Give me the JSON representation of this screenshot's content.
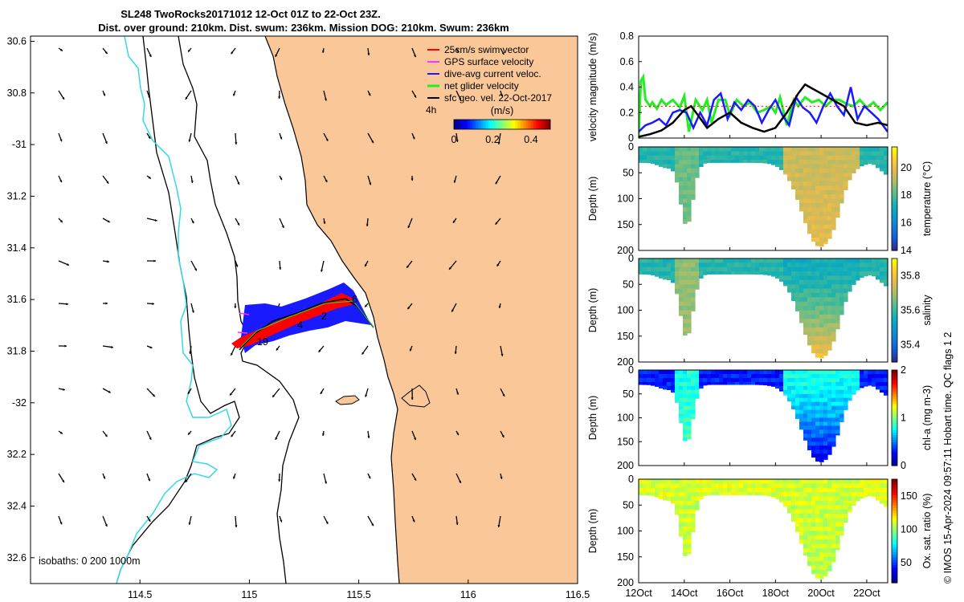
{
  "title_line1": "SL248 TwoRocks20171012 12-Oct 01Z to 22-Oct 23Z.",
  "title_line2": "Dist. over ground: 210km. Dist. swum: 236km. Mission DOG: 210km. Swum: 236km",
  "credit": "© IMOS 15-Apr-2024 09:57:11 Hobart time. QC flags 1  2",
  "colors": {
    "land": "#fac898",
    "isobath": "#000000",
    "shelf_break": "#33d9e8",
    "swim": "#ff0000",
    "gps": "#ff33ff",
    "current": "#1a1aff",
    "net": "#22ee22",
    "geo": "#000000"
  },
  "chart_data": [
    {
      "type": "map",
      "name": "glider track map",
      "xlabel": "",
      "ylabel": "",
      "xlim": [
        114.0,
        116.5
      ],
      "ylim": [
        -32.7,
        -30.58
      ],
      "xticks": [
        114.5,
        115,
        115.5,
        116,
        116.5
      ],
      "xtick_labels": [
        "114.5",
        "115",
        "115.5",
        "116",
        "116.5"
      ],
      "yticks": [
        -30.6,
        -30.8,
        -31,
        -31.2,
        -31.4,
        -31.6,
        -31.8,
        -32,
        -32.2,
        -32.4,
        -32.6
      ],
      "ytick_labels": [
        "30.6",
        "30.8",
        "-31",
        "31.2",
        "31.4",
        "31.6",
        "31.8",
        "-32",
        "32.2",
        "32.4",
        "32.6"
      ],
      "legend": [
        {
          "label": "25cm/s swim vector",
          "color": "#ff0000"
        },
        {
          "label": "GPS surface velocity",
          "color": "#ff33ff"
        },
        {
          "label": "dive-avg current veloc.",
          "color": "#1a1aff"
        },
        {
          "label": "net glider velocity",
          "color": "#22ee22"
        },
        {
          "label": "sfc geo. vel. 22-Oct-2017",
          "color": "#000000"
        }
      ],
      "legend_position": "top-right",
      "scale_label": "4h",
      "colorbar": {
        "title": "(m/s)",
        "range": [
          0,
          0.5
        ],
        "ticks": [
          0,
          0.2,
          0.4
        ],
        "tick_labels": [
          "0",
          "0.2",
          "0.4"
        ]
      },
      "isobaths_label": "isobaths: 0   200  1000m",
      "track_labels": [
        "6",
        "2",
        "4",
        "19"
      ],
      "glider_track": {
        "lon": [
          115.62,
          115.5,
          115.42,
          115.3,
          115.2,
          115.1,
          115.02,
          114.99
        ],
        "lat": [
          -31.72,
          -31.64,
          -31.63,
          -31.67,
          -31.7,
          -31.74,
          -31.77,
          -31.79
        ]
      }
    },
    {
      "type": "line",
      "name": "velocity magnitude",
      "ylabel": "velocity magnitude (m/s)",
      "xlim": [
        0,
        10.92
      ],
      "ylim": [
        0,
        0.8
      ],
      "yticks": [
        0,
        0.2,
        0.4,
        0.6,
        0.8
      ],
      "ytick_labels": [
        "0",
        "0.2",
        "0.4",
        "0.6",
        "0.8"
      ],
      "series": [
        {
          "name": "net glider velocity",
          "color": "#22ee22",
          "t": [
            0.0,
            0.1,
            0.2,
            0.3,
            0.5,
            0.6,
            0.8,
            1.0,
            1.2,
            1.5,
            1.8,
            2.0,
            2.2,
            2.5,
            2.8,
            3.0,
            3.2,
            3.5,
            3.8,
            4.0,
            4.3,
            4.6,
            4.9,
            5.2,
            5.5,
            5.8,
            6.0,
            6.2,
            6.5,
            6.8,
            7.0,
            7.3,
            7.6,
            7.9,
            8.2,
            8.5,
            8.8,
            9.1,
            9.4,
            9.7,
            10.0,
            10.3,
            10.6,
            10.92
          ],
          "v": [
            0.02,
            0.45,
            0.48,
            0.3,
            0.25,
            0.28,
            0.23,
            0.3,
            0.26,
            0.3,
            0.24,
            0.33,
            0.05,
            0.3,
            0.22,
            0.3,
            0.12,
            0.3,
            0.3,
            0.18,
            0.3,
            0.25,
            0.28,
            0.2,
            0.22,
            0.25,
            0.2,
            0.32,
            0.1,
            0.3,
            0.25,
            0.32,
            0.28,
            0.3,
            0.25,
            0.3,
            0.3,
            0.27,
            0.25,
            0.3,
            0.24,
            0.28,
            0.22,
            0.28
          ]
        },
        {
          "name": "dive-avg current veloc.",
          "color": "#1a1aff",
          "t": [
            0.0,
            0.3,
            0.6,
            0.9,
            1.2,
            1.5,
            1.8,
            2.1,
            2.4,
            2.7,
            3.0,
            3.3,
            3.6,
            3.9,
            4.2,
            4.5,
            4.8,
            5.1,
            5.4,
            5.7,
            6.0,
            6.3,
            6.6,
            6.9,
            7.2,
            7.5,
            7.8,
            8.1,
            8.4,
            8.7,
            9.0,
            9.3,
            9.6,
            9.9,
            10.2,
            10.5,
            10.92
          ],
          "v": [
            0.05,
            0.1,
            0.12,
            0.15,
            0.1,
            0.2,
            0.22,
            0.2,
            0.08,
            0.2,
            0.1,
            0.3,
            0.35,
            0.15,
            0.28,
            0.22,
            0.3,
            0.25,
            0.12,
            0.22,
            0.3,
            0.18,
            0.1,
            0.32,
            0.24,
            0.2,
            0.12,
            0.25,
            0.35,
            0.25,
            0.18,
            0.4,
            0.15,
            0.25,
            0.2,
            0.15,
            0.05
          ]
        },
        {
          "name": "sfc geo. vel.",
          "color": "#000000",
          "t": [
            0.0,
            0.5,
            1.0,
            1.5,
            2.0,
            2.3,
            2.6,
            3.0,
            3.5,
            4.0,
            4.5,
            5.0,
            5.5,
            6.0,
            6.5,
            7.0,
            7.3,
            7.5,
            8.0,
            8.5,
            9.0,
            9.5,
            10.0,
            10.5,
            10.92
          ],
          "v": [
            0.01,
            0.03,
            0.06,
            0.12,
            0.22,
            0.25,
            0.18,
            0.08,
            0.15,
            0.2,
            0.12,
            0.08,
            0.05,
            0.08,
            0.2,
            0.35,
            0.42,
            0.4,
            0.35,
            0.3,
            0.25,
            0.12,
            0.1,
            0.12,
            0.1
          ]
        }
      ]
    },
    {
      "type": "section",
      "name": "temperature",
      "ylabel": "Depth (m)",
      "ylim": [
        200,
        0
      ],
      "yticks": [
        0,
        50,
        100,
        150,
        200
      ],
      "ytick_labels": [
        "0",
        "50",
        "100",
        "150",
        "200"
      ],
      "colorbar_label": "temperature (°C)",
      "colorbar_range": [
        14,
        21.5
      ],
      "colorbar_ticks": [
        14,
        16,
        18,
        20
      ],
      "colorbar_tick_labels": [
        "14",
        "16",
        "18",
        "20"
      ],
      "surface_value": 17.5,
      "trough1_value": 18.5,
      "trough2_value": 19.5,
      "deep_value": 20.0
    },
    {
      "type": "section",
      "name": "salinity",
      "ylabel": "Depth (m)",
      "ylim": [
        200,
        0
      ],
      "yticks": [
        0,
        50,
        100,
        150,
        200
      ],
      "ytick_labels": [
        "0",
        "50",
        "100",
        "150",
        "200"
      ],
      "colorbar_label": "salinity",
      "colorbar_range": [
        35.3,
        35.9
      ],
      "colorbar_ticks": [
        35.4,
        35.6,
        35.8
      ],
      "colorbar_tick_labels": [
        "35.4",
        "35.6",
        "35.8"
      ],
      "surface_value": 35.58,
      "trough1_value": 35.7,
      "trough2_value": 35.55,
      "deep_value": 35.82
    },
    {
      "type": "section",
      "name": "chlorophyll",
      "ylabel": "Depth (m)",
      "ylim": [
        200,
        0
      ],
      "yticks": [
        0,
        50,
        100,
        150,
        200
      ],
      "ytick_labels": [
        "0",
        "50",
        "100",
        "150",
        "200"
      ],
      "colorbar_label": "chl-a (mg m-3)",
      "colorbar_range": [
        0,
        2
      ],
      "colorbar_ticks": [
        0,
        1,
        2
      ],
      "colorbar_tick_labels": [
        "0",
        "1",
        "2"
      ],
      "surface_value": 0.3,
      "trough1_value": 0.9,
      "trough2_value": 0.8,
      "deep_value": 0.15
    },
    {
      "type": "section",
      "name": "oxygen",
      "ylabel": "Depth (m)",
      "ylim": [
        200,
        0
      ],
      "yticks": [
        0,
        50,
        100,
        150,
        200
      ],
      "ytick_labels": [
        "0",
        "50",
        "100",
        "150",
        "200"
      ],
      "colorbar_label": "Ox. sat. ratio (%)",
      "colorbar_range": [
        20,
        175
      ],
      "colorbar_ticks": [
        50,
        100,
        150
      ],
      "colorbar_tick_labels": [
        "50",
        "100",
        "150"
      ],
      "surface_value": 112,
      "trough1_value": 108,
      "trough2_value": 110,
      "deep_value": 105
    }
  ],
  "time_axis": {
    "xlim": [
      0,
      10.92
    ],
    "ticks": [
      0,
      2,
      4,
      6,
      8,
      10
    ],
    "tick_labels": [
      "12Oct",
      "14Oct",
      "16Oct",
      "18Oct",
      "20Oct",
      "22Oct"
    ]
  }
}
